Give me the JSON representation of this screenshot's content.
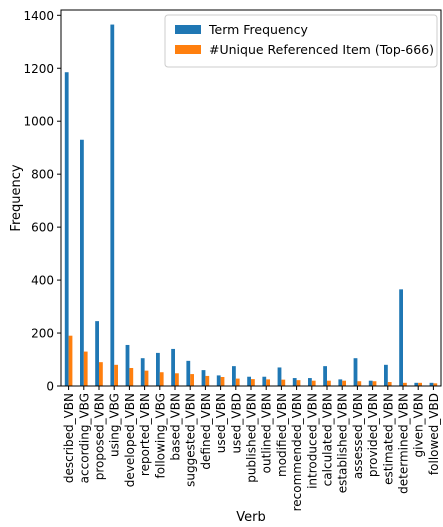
{
  "chart_data": {
    "type": "bar",
    "xlabel": "Verb",
    "ylabel": "Frequency",
    "ylim": [
      0,
      1420
    ],
    "yticks": [
      0,
      200,
      400,
      600,
      800,
      1000,
      1200,
      1400
    ],
    "legend_position": "top-right",
    "grid": false,
    "categories": [
      "described_VBN",
      "according_VBG",
      "proposed_VBN",
      "using_VBG",
      "developed_VBN",
      "reported_VBN",
      "following_VBG",
      "based_VBN",
      "suggested_VBN",
      "defined_VBN",
      "used_VBN",
      "used_VBD",
      "published_VBN",
      "outlined_VBN",
      "modified_VBN",
      "recommended_VBN",
      "introduced_VBN",
      "calculated_VBN",
      "established_VBN",
      "assessed_VBN",
      "provided_VBN",
      "estimated_VBN",
      "determined_VBN",
      "given_VBN",
      "followed_VBD"
    ],
    "series": [
      {
        "name": "Term Frequency",
        "color": "#1f77b4",
        "values": [
          1185,
          930,
          245,
          1365,
          155,
          105,
          125,
          140,
          95,
          60,
          40,
          75,
          35,
          35,
          70,
          30,
          30,
          75,
          25,
          105,
          20,
          80,
          365,
          12,
          12
        ]
      },
      {
        "name": "#Unique Referenced Item (Top-666)",
        "color": "#ff7f0e",
        "values": [
          190,
          130,
          90,
          80,
          68,
          58,
          52,
          48,
          45,
          38,
          34,
          28,
          26,
          25,
          24,
          22,
          20,
          20,
          20,
          18,
          18,
          15,
          12,
          12,
          10
        ]
      }
    ]
  }
}
